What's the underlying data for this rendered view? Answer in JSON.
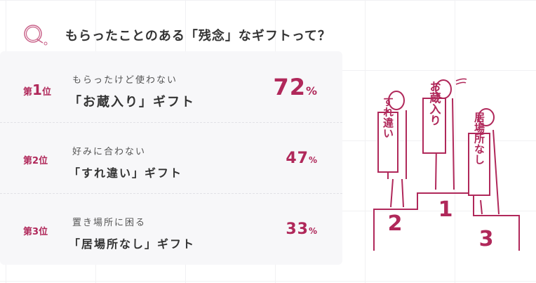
{
  "header": {
    "title": "もらったことのある「残念」なギフトって？",
    "icon": "q-icon"
  },
  "ranking": [
    {
      "rank_prefix": "第",
      "rank_num": "1",
      "rank_suffix": "位",
      "subtitle": "もらったけど使わない",
      "label": "「お蔵入り」ギフト",
      "percent": "72",
      "unit": "%"
    },
    {
      "rank_prefix": "第",
      "rank_num": "2",
      "rank_suffix": "位",
      "subtitle": "好みに合わない",
      "label": "「すれ違い」ギフト",
      "percent": "47",
      "unit": "%"
    },
    {
      "rank_prefix": "第",
      "rank_num": "3",
      "rank_suffix": "位",
      "subtitle": "置き場所に困る",
      "label": "「居場所なし」ギフト",
      "percent": "33",
      "unit": "%"
    }
  ],
  "illustration": {
    "banner1": "お蔵入り",
    "banner2": "すれ違い",
    "banner3": "居場所なし",
    "podium1": "1",
    "podium2": "2",
    "podium3": "3"
  },
  "colors": {
    "accent": "#b0285a",
    "card": "#f7f7f9"
  }
}
